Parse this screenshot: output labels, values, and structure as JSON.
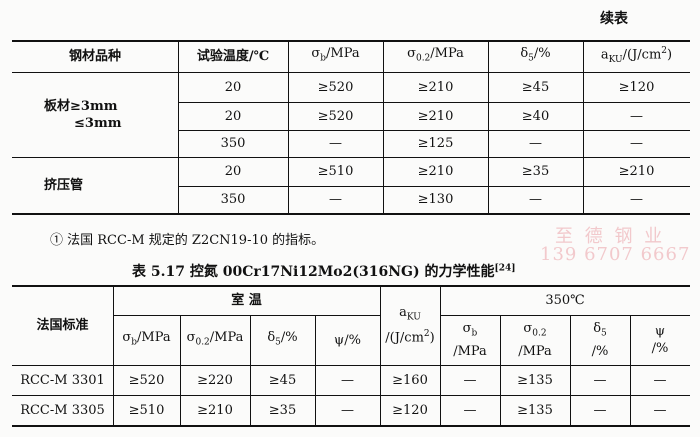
{
  "continued_label": "续表",
  "table1": {
    "header": [
      "钢材品种",
      "试验温度/℃",
      [
        [
          {
            "text": "σ"
          },
          {
            "sub": "b"
          },
          {
            "text": "/MPa"
          }
        ]
      ],
      [
        [
          {
            "text": "σ"
          },
          {
            "sub": "0.2"
          },
          {
            "text": "/MPa"
          }
        ]
      ],
      [
        [
          {
            "text": "δ"
          },
          {
            "sub": "5"
          },
          {
            "text": "/%"
          }
        ]
      ],
      [
        [
          {
            "text": "a"
          },
          {
            "sub": "KU"
          },
          {
            "text": "/(J/cm"
          },
          {
            "sup": "2"
          },
          {
            "text": ")"
          }
        ]
      ]
    ],
    "groups": [
      {
        "material": [
          "板材≥3mm",
          "≤3mm"
        ],
        "rows": [
          [
            "20",
            "≥520",
            "≥210",
            "≥45",
            "≥120"
          ],
          [
            "20",
            "≥520",
            "≥210",
            "≥40",
            "—"
          ],
          [
            "350",
            "—",
            "≥125",
            "—",
            "—"
          ]
        ]
      },
      {
        "material": [
          "挤压管"
        ],
        "rows": [
          [
            "20",
            "≥510",
            "≥210",
            "≥35",
            "≥210"
          ],
          [
            "350",
            "—",
            "≥130",
            "—",
            "—"
          ]
        ]
      }
    ]
  },
  "footnote": "① 法国 RCC-M 规定的 Z2CN19-10 的指标。",
  "watermark": {
    "company": "至 德 钢 业",
    "phone": "139 6707 6667"
  },
  "table2": {
    "title": [
      {
        "text": "表 5.17  控氮 00Cr17Ni12Mo2(316NG) 的力学性能"
      },
      {
        "sup": "[24]"
      }
    ],
    "corner": "法国标准",
    "group_room": "室 温",
    "impact": [
      [
        {
          "text": "a"
        },
        {
          "sub": "KU"
        }
      ],
      [
        {
          "text": "/(J/cm"
        },
        {
          "sup": "2"
        },
        {
          "text": ")"
        }
      ]
    ],
    "group_hot": "350℃",
    "room_header": [
      [
        [
          {
            "text": "σ"
          },
          {
            "sub": "b"
          },
          {
            "text": "/MPa"
          }
        ]
      ],
      [
        [
          {
            "text": "σ"
          },
          {
            "sub": "0.2"
          },
          {
            "text": "/MPa"
          }
        ]
      ],
      [
        [
          {
            "text": "δ"
          },
          {
            "sub": "5"
          },
          {
            "text": "/%"
          }
        ]
      ],
      [
        [
          {
            "text": "ψ/%"
          }
        ]
      ]
    ],
    "hot_header": [
      [
        [
          {
            "text": "σ"
          },
          {
            "sub": "b"
          }
        ],
        [
          {
            "text": "/MPa"
          }
        ]
      ],
      [
        [
          {
            "text": "σ"
          },
          {
            "sub": "0.2"
          }
        ],
        [
          {
            "text": "/MPa"
          }
        ]
      ],
      [
        [
          {
            "text": "δ"
          },
          {
            "sub": "5"
          }
        ],
        [
          {
            "text": "/%"
          }
        ]
      ],
      [
        [
          {
            "text": "ψ"
          }
        ],
        [
          {
            "text": "/%"
          }
        ]
      ]
    ],
    "rows": [
      {
        "standard": "RCC-M 3301",
        "values": [
          "≥520",
          "≥220",
          "≥45",
          "—",
          "≥160",
          "—",
          "≥135",
          "—",
          "—"
        ]
      },
      {
        "standard": "RCC-M 3305",
        "values": [
          "≥510",
          "≥210",
          "≥35",
          "—",
          "≥120",
          "—",
          "≥135",
          "—",
          "—"
        ]
      }
    ]
  }
}
